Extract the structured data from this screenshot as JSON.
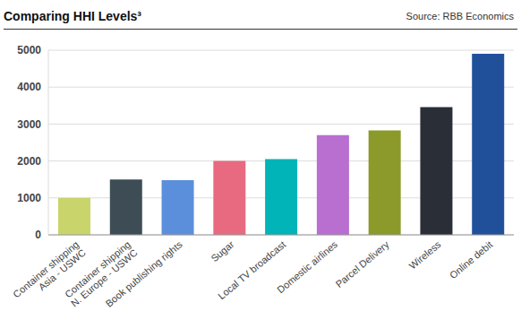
{
  "chart_data": {
    "type": "bar",
    "title": "Comparing HHI Levels³",
    "source": "Source:  RBB Economics",
    "categories": [
      "Container shipping\nAsia - USWC",
      "Container shipping\nN. Europe - USWC",
      "Book publishing rights",
      "Sugar",
      "Local TV broadcast",
      "Domestic airlines",
      "Parcel Delivery",
      "Wireless",
      "Online debit"
    ],
    "values": [
      1000,
      1500,
      1480,
      2000,
      2050,
      2700,
      2830,
      3460,
      4900
    ],
    "colors": [
      "#c9d56b",
      "#3e4d55",
      "#5b8fdc",
      "#e86a80",
      "#00b4b8",
      "#b86fd0",
      "#8b9a2b",
      "#2a2e37",
      "#21509b"
    ],
    "ylim": [
      0,
      5000
    ],
    "yticks": [
      0,
      1000,
      2000,
      3000,
      4000,
      5000
    ],
    "grid": true
  }
}
